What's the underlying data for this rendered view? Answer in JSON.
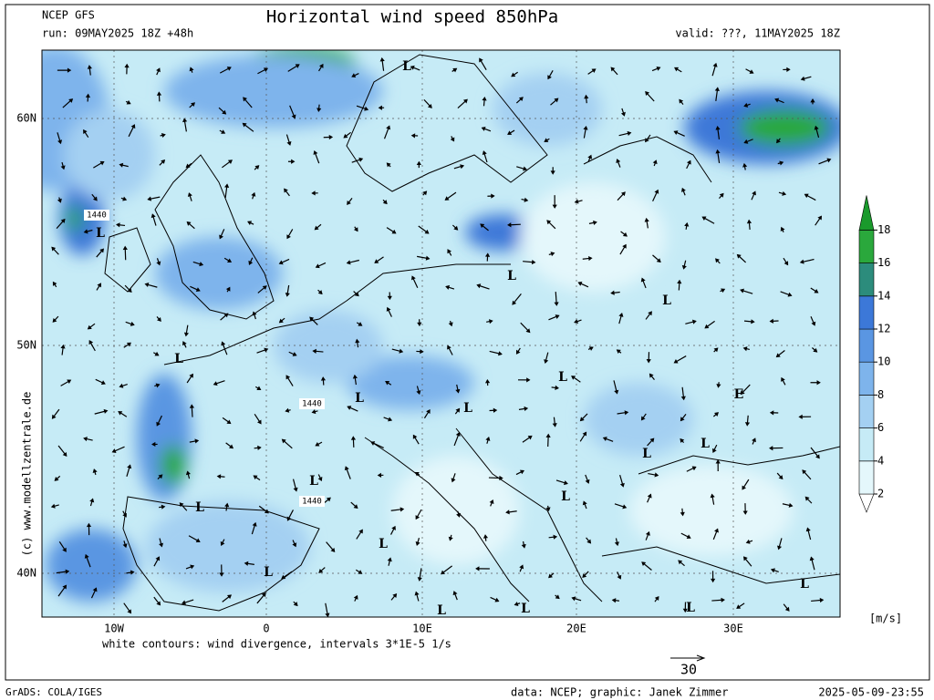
{
  "header": {
    "model": "NCEP GFS",
    "run": "run: 09MAY2025 18Z +48h",
    "title": "Horizontal wind speed 850hPa",
    "valid": "valid: ???, 11MAY2025 18Z"
  },
  "map": {
    "lat_labels": [
      "60N",
      "50N",
      "40N"
    ],
    "lon_labels": [
      "10W",
      "0",
      "10E",
      "20E",
      "30E"
    ],
    "pressure_labels": [
      "L",
      "L",
      "L",
      "L",
      "L",
      "L",
      "L",
      "L",
      "L",
      "L",
      "L",
      "L",
      "L",
      "L",
      "L",
      "L",
      "L",
      "L",
      "L",
      "E"
    ],
    "contour_labels": [
      "1440",
      "1440",
      "1440"
    ],
    "copyright": "(c) www.modellzentrale.de"
  },
  "colorbar": {
    "ticks": [
      2,
      4,
      6,
      8,
      10,
      12,
      14,
      16,
      18
    ],
    "colors": [
      "#ffffff",
      "#e4f7fb",
      "#c6ebf6",
      "#a4d0f2",
      "#7eb4ec",
      "#5a96e2",
      "#3c78d8",
      "#2c8c7c",
      "#2aa83c",
      "#1a9a2c"
    ],
    "unit": "[m/s]"
  },
  "footer": {
    "note": "white contours: wind divergence, intervals 3*1E-5 1/s",
    "arrow_scale": "30",
    "software": "GrADS: COLA/IGES",
    "credit": "data: NCEP; graphic: Janek Zimmer",
    "timestamp": "2025-05-09-23:55"
  }
}
